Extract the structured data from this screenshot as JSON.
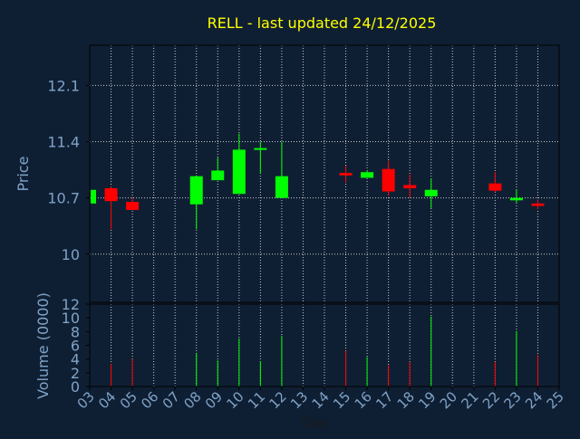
{
  "title": "RELL - last updated 24/12/2025",
  "colors": {
    "background": "#0f1f33",
    "title": "#ffff00",
    "axis_text": "#7fa3c8",
    "axis_label": "#1a1a1a",
    "grid": "#c8c8c8",
    "frame": "#000000",
    "up": "#00ff00",
    "down": "#ff0000"
  },
  "chart_data": [
    {
      "type": "candlestick",
      "title": "RELL - last updated 24/12/2025",
      "ylabel": "Price",
      "ylim": [
        9.4,
        12.6
      ],
      "yticks": [
        10,
        10.7,
        11.4,
        12.1
      ],
      "ytick_labels": [
        "10",
        "10.7",
        "11.4",
        "12.1"
      ],
      "xlim": [
        3,
        25
      ],
      "grid": true,
      "candles": [
        {
          "day": 3,
          "open": 10.63,
          "high": 10.82,
          "low": 10.63,
          "close": 10.8
        },
        {
          "day": 4,
          "open": 10.82,
          "high": 10.84,
          "low": 10.31,
          "close": 10.66
        },
        {
          "day": 5,
          "open": 10.65,
          "high": 10.7,
          "low": 10.55,
          "close": 10.55
        },
        {
          "day": 8,
          "open": 10.62,
          "high": 10.97,
          "low": 10.31,
          "close": 10.97
        },
        {
          "day": 9,
          "open": 10.92,
          "high": 11.2,
          "low": 10.92,
          "close": 11.04
        },
        {
          "day": 10,
          "open": 10.75,
          "high": 11.5,
          "low": 10.75,
          "close": 11.3
        },
        {
          "day": 11,
          "open": 11.3,
          "high": 11.4,
          "low": 11.0,
          "close": 11.32
        },
        {
          "day": 12,
          "open": 10.7,
          "high": 11.4,
          "low": 10.7,
          "close": 10.97
        },
        {
          "day": 15,
          "open": 11.01,
          "high": 11.1,
          "low": 10.89,
          "close": 10.98
        },
        {
          "day": 16,
          "open": 10.95,
          "high": 11.04,
          "low": 10.95,
          "close": 11.02
        },
        {
          "day": 17,
          "open": 11.06,
          "high": 11.16,
          "low": 10.73,
          "close": 10.78
        },
        {
          "day": 18,
          "open": 10.86,
          "high": 10.99,
          "low": 10.7,
          "close": 10.82
        },
        {
          "day": 19,
          "open": 10.72,
          "high": 10.94,
          "low": 10.57,
          "close": 10.8
        },
        {
          "day": 22,
          "open": 10.88,
          "high": 11.02,
          "low": 10.77,
          "close": 10.79
        },
        {
          "day": 23,
          "open": 10.67,
          "high": 10.8,
          "low": 10.64,
          "close": 10.7
        },
        {
          "day": 24,
          "open": 10.63,
          "high": 10.68,
          "low": 10.56,
          "close": 10.6
        }
      ]
    },
    {
      "type": "bar",
      "ylabel": "Volume (0000)",
      "xlabel": "Day",
      "ylim": [
        0,
        12
      ],
      "yticks": [
        0,
        2,
        4,
        6,
        8,
        10,
        12
      ],
      "ytick_labels": [
        "0",
        "2",
        "4",
        "6",
        "8",
        "10",
        "12"
      ],
      "xlim": [
        3,
        25
      ],
      "xticks": [
        3,
        4,
        5,
        6,
        7,
        8,
        9,
        10,
        11,
        12,
        13,
        14,
        15,
        16,
        17,
        18,
        19,
        20,
        21,
        22,
        23,
        24,
        25
      ],
      "xtick_labels": [
        "03",
        "04",
        "05",
        "06",
        "07",
        "08",
        "09",
        "10",
        "11",
        "12",
        "13",
        "14",
        "15",
        "16",
        "17",
        "18",
        "19",
        "20",
        "21",
        "22",
        "23",
        "24",
        "25"
      ],
      "bars": [
        {
          "day": 3,
          "value": 0.3,
          "direction": "up"
        },
        {
          "day": 4,
          "value": 3.3,
          "direction": "down"
        },
        {
          "day": 5,
          "value": 4.0,
          "direction": "down"
        },
        {
          "day": 8,
          "value": 4.9,
          "direction": "up"
        },
        {
          "day": 9,
          "value": 3.8,
          "direction": "up"
        },
        {
          "day": 10,
          "value": 7.0,
          "direction": "up"
        },
        {
          "day": 11,
          "value": 3.7,
          "direction": "up"
        },
        {
          "day": 12,
          "value": 7.4,
          "direction": "up"
        },
        {
          "day": 15,
          "value": 5.2,
          "direction": "down"
        },
        {
          "day": 16,
          "value": 4.3,
          "direction": "up"
        },
        {
          "day": 17,
          "value": 3.1,
          "direction": "down"
        },
        {
          "day": 18,
          "value": 3.6,
          "direction": "down"
        },
        {
          "day": 19,
          "value": 10.2,
          "direction": "up"
        },
        {
          "day": 22,
          "value": 3.6,
          "direction": "down"
        },
        {
          "day": 23,
          "value": 8.1,
          "direction": "up"
        },
        {
          "day": 24,
          "value": 4.6,
          "direction": "down"
        }
      ]
    }
  ]
}
